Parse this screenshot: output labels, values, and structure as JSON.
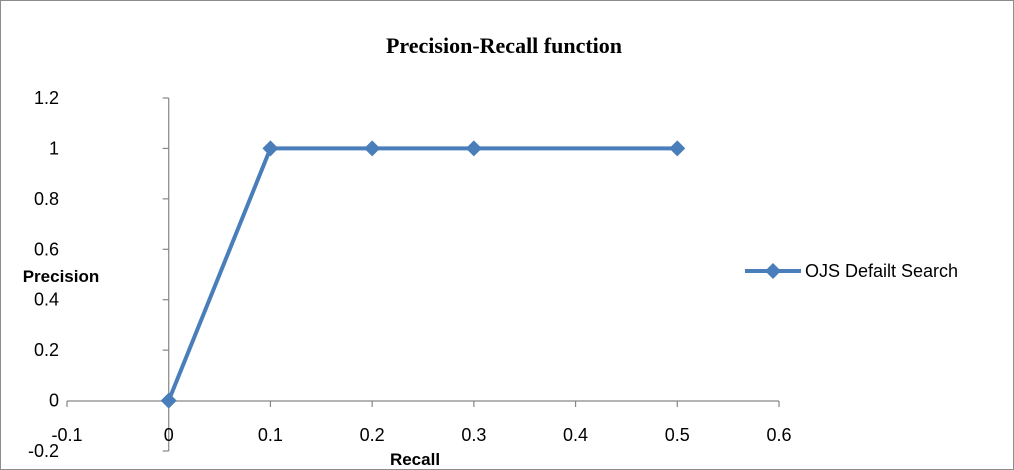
{
  "chart_data": {
    "type": "line",
    "title": "Precision-Recall function",
    "xlabel": "Recall",
    "ylabel": "Precision",
    "x_ticks": [
      "-0.1",
      "0",
      "0.1",
      "0.2",
      "0.3",
      "0.4",
      "0.5",
      "0.6"
    ],
    "y_ticks": [
      "-0.2",
      "0",
      "0.2",
      "0.4",
      "0.6",
      "0.8",
      "1",
      "1.2"
    ],
    "xlim": [
      -0.1,
      0.6
    ],
    "ylim": [
      -0.2,
      1.2
    ],
    "grid": false,
    "legend_position": "right",
    "series": [
      {
        "name": "OJS Defailt Search",
        "color": "#4a7ebb",
        "marker": "diamond",
        "x": [
          0,
          0.1,
          0.2,
          0.3,
          0.5
        ],
        "y": [
          0,
          1,
          1,
          1,
          1
        ]
      }
    ]
  }
}
